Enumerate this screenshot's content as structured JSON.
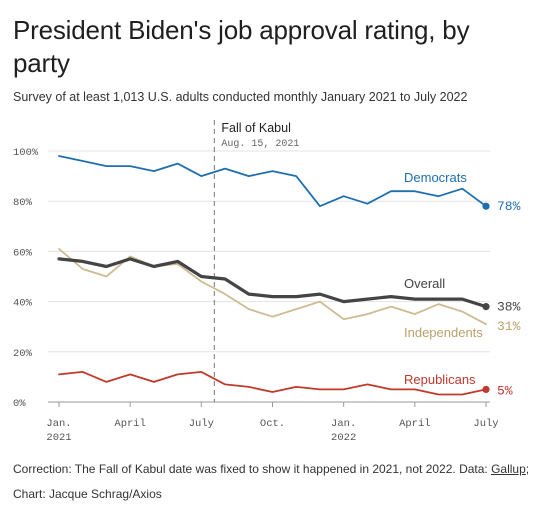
{
  "title": "President Biden's job approval rating, by party",
  "subtitle": "Survey of at least 1,013 U.S. adults conducted monthly January 2021 to July 2022",
  "footer": {
    "correction": "Correction: The Fall of Kabul date was fixed to show it happened in 2021, not 2022. Data: ",
    "source_link": "Gallup",
    "source_suffix": ";",
    "credit": "Chart: Jacque Schrag/Axios"
  },
  "chart_data": {
    "type": "line",
    "x": [
      "2021-01",
      "2021-02",
      "2021-03",
      "2021-04",
      "2021-05",
      "2021-06",
      "2021-07",
      "2021-08",
      "2021-09",
      "2021-10",
      "2021-11",
      "2021-12",
      "2022-01",
      "2022-02",
      "2022-03",
      "2022-04",
      "2022-05",
      "2022-06",
      "2022-07"
    ],
    "x_tick_labels": [
      {
        "x": "2021-01",
        "line1": "Jan.",
        "line2": "2021"
      },
      {
        "x": "2021-04",
        "line1": "April",
        "line2": ""
      },
      {
        "x": "2021-07",
        "line1": "July",
        "line2": ""
      },
      {
        "x": "2021-10",
        "line1": "Oct.",
        "line2": ""
      },
      {
        "x": "2022-01",
        "line1": "Jan.",
        "line2": "2022"
      },
      {
        "x": "2022-04",
        "line1": "April",
        "line2": ""
      },
      {
        "x": "2022-07",
        "line1": "July",
        "line2": ""
      }
    ],
    "y_ticks": [
      "100%",
      "80%",
      "60%",
      "40%",
      "20%",
      "0%"
    ],
    "y_tick_values": [
      100,
      80,
      60,
      40,
      20,
      0
    ],
    "ylim": [
      0,
      100
    ],
    "grid": true,
    "series": [
      {
        "name": "Democrats",
        "color": "#1f6eb0",
        "end_label": "78%",
        "values": [
          98,
          96,
          94,
          94,
          92,
          95,
          90,
          93,
          90,
          92,
          90,
          78,
          82,
          79,
          84,
          84,
          82,
          85,
          78
        ]
      },
      {
        "name": "Independents",
        "color": "#cdbb92",
        "label_color": "#b9a16b",
        "end_label": "31%",
        "values": [
          61,
          53,
          50,
          58,
          54,
          55,
          48,
          43,
          37,
          34,
          37,
          40,
          33,
          35,
          38,
          35,
          39,
          36,
          31
        ]
      },
      {
        "name": "Overall",
        "color": "#444444",
        "end_label": "38%",
        "values": [
          57,
          56,
          54,
          57,
          54,
          56,
          50,
          49,
          43,
          42,
          42,
          43,
          40,
          41,
          42,
          41,
          41,
          41,
          38
        ]
      },
      {
        "name": "Republicans",
        "color": "#c0392b",
        "end_label": "5%",
        "values": [
          11,
          12,
          8,
          11,
          8,
          11,
          12,
          7,
          6,
          4,
          6,
          5,
          5,
          7,
          5,
          5,
          3,
          3,
          5
        ]
      }
    ],
    "annotation": {
      "x": "2021-08-15",
      "label": "Fall of Kabul",
      "sublabel": "Aug. 15, 2021"
    }
  }
}
